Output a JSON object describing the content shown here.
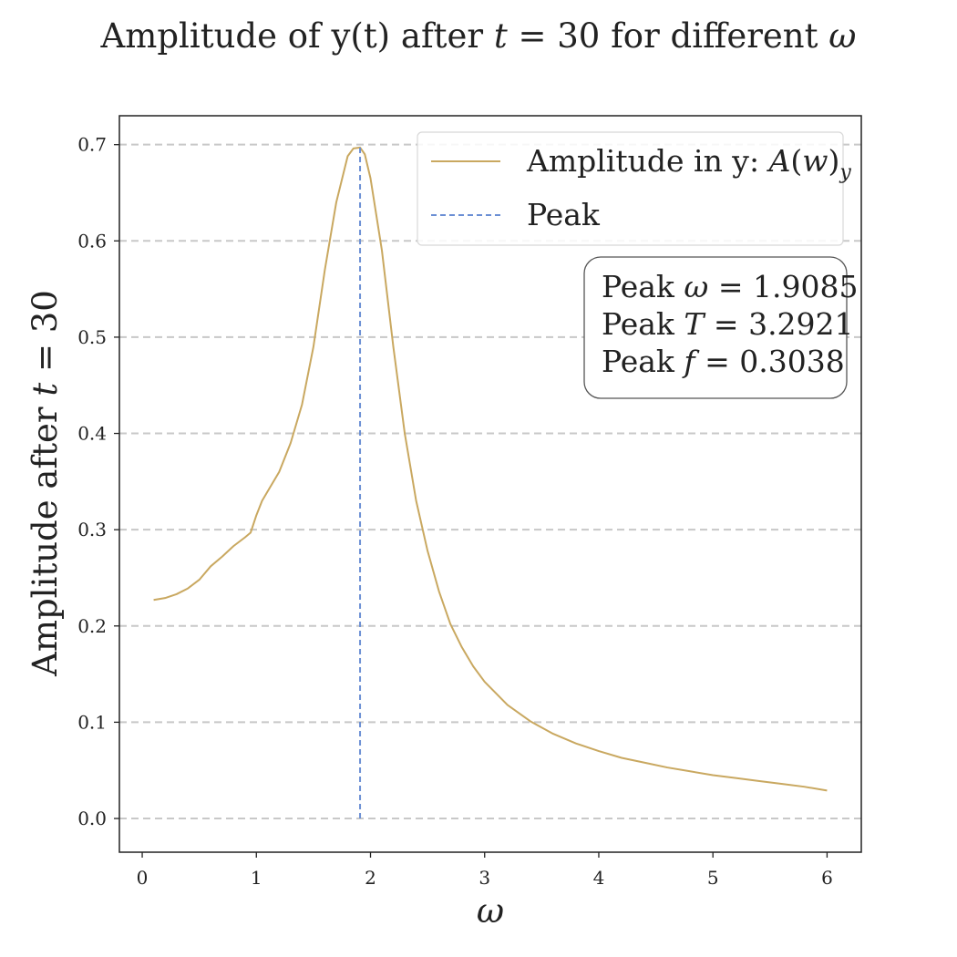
{
  "chart_data": {
    "type": "line",
    "title": {
      "prefix": "Amplitude of y(t) after ",
      "tvar": "t",
      "mid": " = 30 for different ",
      "omega": "ω"
    },
    "xlabel": "ω",
    "ylabel": {
      "prefix": "Amplitude after ",
      "tvar": "t",
      "suffix": " = 30"
    },
    "xlim": [
      -0.2,
      6.3
    ],
    "ylim": [
      -0.035,
      0.73
    ],
    "xticks": [
      0,
      1,
      2,
      3,
      4,
      5,
      6
    ],
    "xtick_labels": [
      "0",
      "1",
      "2",
      "3",
      "4",
      "5",
      "6"
    ],
    "yticks": [
      0.0,
      0.1,
      0.2,
      0.3,
      0.4,
      0.5,
      0.6,
      0.7
    ],
    "ytick_labels": [
      "0.0",
      "0.1",
      "0.2",
      "0.3",
      "0.4",
      "0.5",
      "0.6",
      "0.7"
    ],
    "grid": "horizontal dashed",
    "legend_position": "top-right",
    "series": [
      {
        "name": "Amplitude in y: A(w)_y",
        "color": "#c9a860",
        "style": "solid",
        "x": [
          0.1,
          0.2,
          0.3,
          0.4,
          0.5,
          0.6,
          0.7,
          0.8,
          0.9,
          0.95,
          1.0,
          1.05,
          1.1,
          1.2,
          1.3,
          1.4,
          1.5,
          1.6,
          1.7,
          1.8,
          1.85,
          1.9085,
          1.95,
          2.0,
          2.1,
          2.2,
          2.3,
          2.4,
          2.5,
          2.6,
          2.7,
          2.8,
          2.9,
          3.0,
          3.2,
          3.4,
          3.6,
          3.8,
          4.0,
          4.2,
          4.4,
          4.6,
          4.8,
          5.0,
          5.2,
          5.4,
          5.6,
          5.8,
          6.0
        ],
        "y": [
          0.227,
          0.229,
          0.233,
          0.239,
          0.248,
          0.262,
          0.272,
          0.283,
          0.292,
          0.297,
          0.315,
          0.33,
          0.34,
          0.36,
          0.39,
          0.43,
          0.49,
          0.57,
          0.64,
          0.688,
          0.696,
          0.697,
          0.69,
          0.665,
          0.59,
          0.49,
          0.4,
          0.33,
          0.278,
          0.236,
          0.202,
          0.178,
          0.158,
          0.142,
          0.118,
          0.101,
          0.088,
          0.078,
          0.07,
          0.063,
          0.058,
          0.053,
          0.049,
          0.045,
          0.042,
          0.039,
          0.036,
          0.033,
          0.029
        ]
      },
      {
        "name": "Peak",
        "color": "#6b8fd4",
        "style": "dashed",
        "x": [
          1.9085,
          1.9085
        ],
        "y": [
          0.0,
          0.697
        ]
      }
    ],
    "legend": [
      {
        "prefix": "Amplitude in y: ",
        "math": "A",
        "paren_open": "(",
        "math2": "w",
        "paren_close": ")",
        "sub": "y"
      },
      {
        "prefix": "Peak"
      }
    ],
    "annotation": {
      "lines": [
        {
          "prefix": "Peak ",
          "var": "ω",
          "value": " = 1.9085"
        },
        {
          "prefix": "Peak ",
          "var": "T",
          "value": " = 3.2921"
        },
        {
          "prefix": "Peak ",
          "var": "f",
          "value": " = 0.3038"
        }
      ]
    },
    "colors": {
      "axis": "#222222",
      "grid": "#c8c8c8",
      "legend_border": "#d8d8d8",
      "annotation_border": "#555555"
    }
  }
}
